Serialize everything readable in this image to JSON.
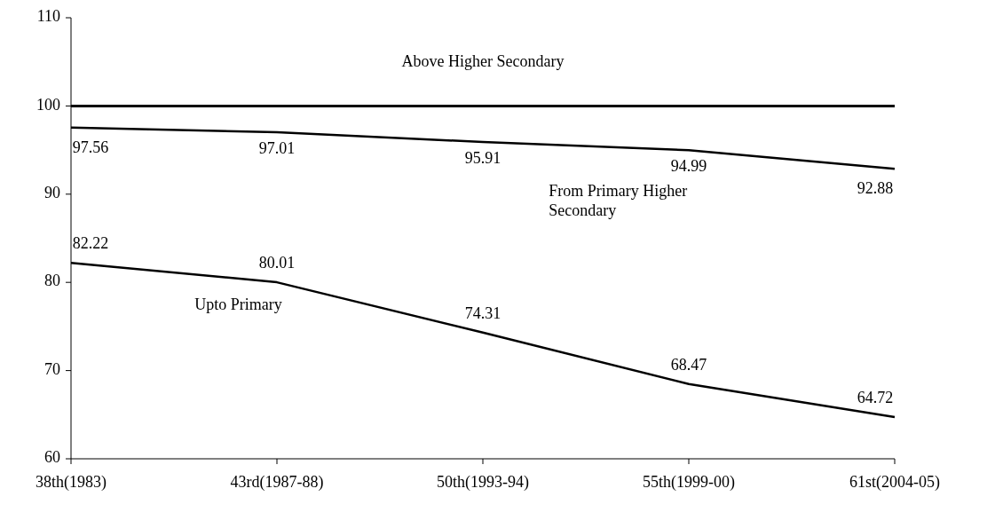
{
  "chart_data": {
    "type": "line",
    "categories": [
      "38th(1983)",
      "43rd(1987-88)",
      "50th(1993-94)",
      "55th(1999-00)",
      "61st(2004-05)"
    ],
    "ylim": [
      60,
      110
    ],
    "yticks": [
      60,
      70,
      80,
      90,
      100,
      110
    ],
    "grid": false,
    "marker": "none",
    "line_style": "solid",
    "series": [
      {
        "name": "Above Higher Secondary",
        "color": "#000000",
        "values": [
          100,
          100,
          100,
          100,
          100
        ]
      },
      {
        "name": "From Primary Higher Secondary",
        "color": "#000000",
        "values": [
          97.56,
          97.01,
          95.91,
          94.99,
          92.88
        ],
        "value_labels": [
          "97.56",
          "97.01",
          "95.91",
          "94.99",
          "92.88"
        ]
      },
      {
        "name": "Upto Primary",
        "color": "#000000",
        "values": [
          82.22,
          80.01,
          74.31,
          68.47,
          64.72
        ],
        "value_labels": [
          "82.22",
          "80.01",
          "74.31",
          "68.47",
          "64.72"
        ]
      }
    ]
  }
}
